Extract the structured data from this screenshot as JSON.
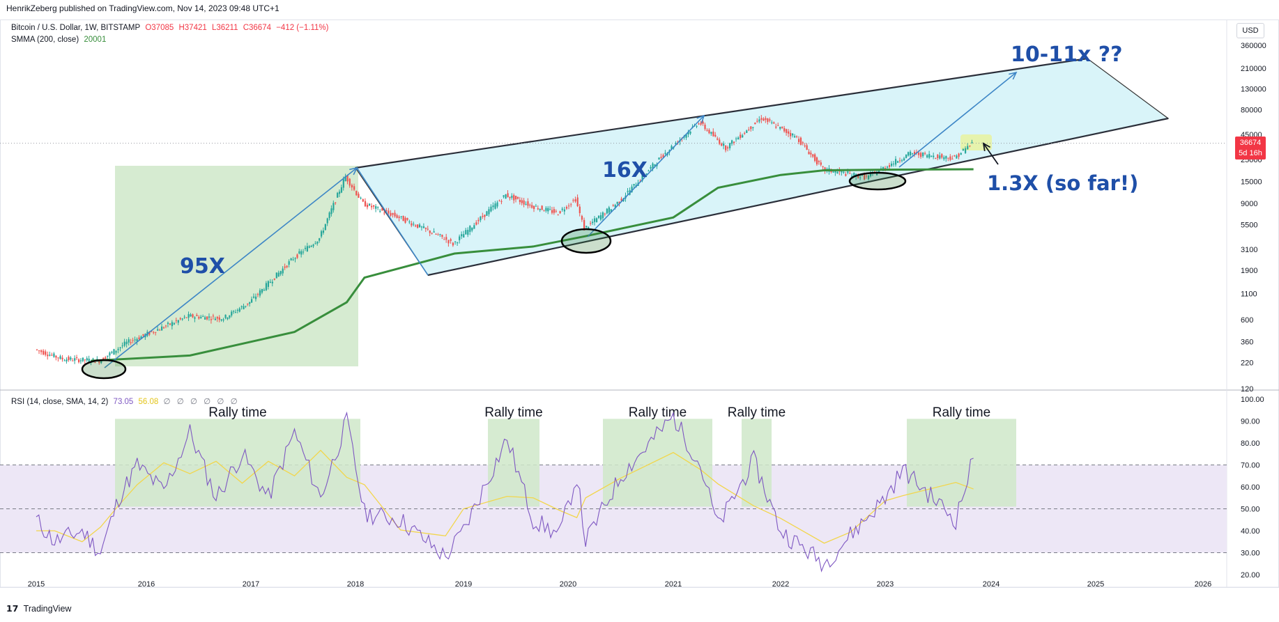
{
  "header": {
    "publisher": "HenrikZeberg published on TradingView.com, Nov 14, 2023 09:48 UTC+1",
    "symbol": "Bitcoin / U.S. Dollar, 1W, BITSTAMP",
    "ohlc": {
      "o": "O37085",
      "h": "H37421",
      "l": "L36211",
      "c": "C36674",
      "chg": "−412 (−1.11%)"
    },
    "smma_label": "SMMA (200, close)",
    "smma_value": "20001",
    "rsi_label": "RSI (14, close, SMA, 14, 2)",
    "rsi_value": "73.05",
    "rsi_sma_value": "56.08",
    "rsi_extra": "∅ ∅ ∅ ∅ ∅ ∅",
    "currency": "USD",
    "last_price": "36674",
    "countdown": "5d 16h"
  },
  "footer": {
    "brand": "TradingView",
    "logo_glyph": "17"
  },
  "colors": {
    "up": "#26a69a",
    "down": "#ef5350",
    "smma": "#388e3c",
    "channel_fill": "#d9f4f9",
    "rally_box": "#cfe8c9",
    "rsi_line": "#7e57c2",
    "rsi_sma": "#f2d64b",
    "rsi_band": "#ede7f6",
    "annotation": "#1f4fa8",
    "arrow": "#3d86c6"
  },
  "chart_data": [
    {
      "type": "candlestick",
      "title": "Bitcoin / U.S. Dollar, 1W, BITSTAMP",
      "scale": "log",
      "y_ticks": [
        120,
        220,
        360,
        600,
        1100,
        1900,
        3100,
        5500,
        9000,
        15000,
        25000,
        45000,
        80000,
        130000,
        210000,
        360000
      ],
      "x_ticks": [
        "2015",
        "2016",
        "2017",
        "2018",
        "2019",
        "2020",
        "2021",
        "2022",
        "2023",
        "2024",
        "2025",
        "2026"
      ],
      "price_path": [
        [
          "2015-01",
          300
        ],
        [
          "2015-04",
          240
        ],
        [
          "2015-08",
          230
        ],
        [
          "2015-11",
          350
        ],
        [
          "2016-06",
          650
        ],
        [
          "2016-10",
          620
        ],
        [
          "2017-01",
          900
        ],
        [
          "2017-06",
          2500
        ],
        [
          "2017-09",
          4000
        ],
        [
          "2017-12",
          17000
        ],
        [
          "2018-02",
          9000
        ],
        [
          "2018-06",
          6500
        ],
        [
          "2018-11",
          4000
        ],
        [
          "2018-12",
          3500
        ],
        [
          "2019-06",
          11000
        ],
        [
          "2019-09",
          8500
        ],
        [
          "2019-12",
          7200
        ],
        [
          "2020-02",
          10000
        ],
        [
          "2020-03",
          5000
        ],
        [
          "2020-07",
          9500
        ],
        [
          "2020-12",
          28000
        ],
        [
          "2021-04",
          60000
        ],
        [
          "2021-07",
          33000
        ],
        [
          "2021-11",
          66000
        ],
        [
          "2022-03",
          42000
        ],
        [
          "2022-06",
          20000
        ],
        [
          "2022-11",
          16500
        ],
        [
          "2023-04",
          29000
        ],
        [
          "2023-09",
          26000
        ],
        [
          "2023-11",
          36674
        ]
      ],
      "smma_path": [
        [
          "2015-07",
          230
        ],
        [
          "2016-06",
          260
        ],
        [
          "2017-06",
          450
        ],
        [
          "2017-12",
          900
        ],
        [
          "2018-02",
          1600
        ],
        [
          "2018-12",
          2800
        ],
        [
          "2019-09",
          3300
        ],
        [
          "2020-03",
          4200
        ],
        [
          "2021-01",
          6500
        ],
        [
          "2021-06",
          13000
        ],
        [
          "2022-01",
          17500
        ],
        [
          "2022-06",
          19500
        ],
        [
          "2023-01",
          19800
        ],
        [
          "2023-11",
          20001
        ]
      ],
      "annotations": [
        "95X",
        "16X",
        "10-11x ??",
        "1.3X (so far!)"
      ]
    },
    {
      "type": "line",
      "title": "RSI (14, close, SMA, 14, 2)",
      "y_ticks": [
        20,
        30,
        40,
        50,
        60,
        70,
        80,
        90,
        100
      ],
      "ylim": [
        20,
        100
      ],
      "levels": [
        30,
        50,
        70
      ],
      "rally_label": "Rally time",
      "rsi_path": [
        [
          "2015-01",
          45
        ],
        [
          "2015-03",
          35
        ],
        [
          "2015-06",
          40
        ],
        [
          "2015-08",
          30
        ],
        [
          "2015-10",
          55
        ],
        [
          "2015-12",
          70
        ],
        [
          "2016-03",
          58
        ],
        [
          "2016-06",
          85
        ],
        [
          "2016-09",
          55
        ],
        [
          "2016-12",
          75
        ],
        [
          "2017-03",
          55
        ],
        [
          "2017-06",
          85
        ],
        [
          "2017-09",
          55
        ],
        [
          "2017-12",
          90
        ],
        [
          "2018-02",
          48
        ],
        [
          "2018-06",
          45
        ],
        [
          "2018-11",
          28
        ],
        [
          "2019-01",
          40
        ],
        [
          "2019-06",
          82
        ],
        [
          "2019-09",
          45
        ],
        [
          "2019-12",
          38
        ],
        [
          "2020-02",
          65
        ],
        [
          "2020-03",
          35
        ],
        [
          "2020-07",
          65
        ],
        [
          "2021-01",
          92
        ],
        [
          "2021-04",
          70
        ],
        [
          "2021-06",
          42
        ],
        [
          "2021-10",
          72
        ],
        [
          "2022-01",
          40
        ],
        [
          "2022-06",
          25
        ],
        [
          "2022-09",
          38
        ],
        [
          "2023-01",
          55
        ],
        [
          "2023-03",
          68
        ],
        [
          "2023-09",
          45
        ],
        [
          "2023-11",
          73.05
        ]
      ]
    }
  ]
}
